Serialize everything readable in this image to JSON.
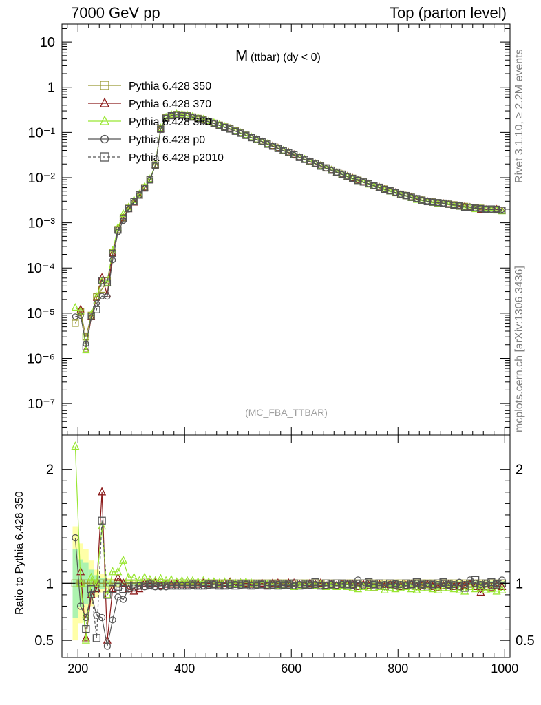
{
  "header": {
    "left": "7000 GeV pp",
    "right": "Top (parton level)"
  },
  "side": {
    "rivet": "Rivet 3.1.10, ≥ 2.2M events",
    "mcplots": "mcplots.cern.ch [arXiv:1306.3436]"
  },
  "chart_data": {
    "type": "line",
    "title_main": "M",
    "title_sub": "(ttbar) (dy < 0)",
    "watermark": "(MC_FBA_TTBAR)",
    "xlabel": "",
    "ylabel": "",
    "ratio_ylabel": "Ratio to Pythia 6.428 350",
    "xlim": [
      170,
      1010
    ],
    "ylim_log": [
      2e-08,
      25
    ],
    "ratio_ylim": [
      0.35,
      2.3
    ],
    "log_y": true,
    "legend_position": "top-left",
    "x_ticks": [
      "200",
      "400",
      "600",
      "800",
      "1000"
    ],
    "y_ticks": [
      "10",
      "1",
      "10⁻¹",
      "10⁻²",
      "10⁻³",
      "10⁻⁴",
      "10⁻⁵",
      "10⁻⁶",
      "10⁻⁷"
    ],
    "ratio_ticks": [
      "2",
      "1",
      "0.5"
    ],
    "reference_x": [
      185,
      195,
      205,
      215,
      225,
      235,
      245,
      255,
      265,
      275,
      285,
      295,
      305,
      315,
      325,
      335,
      345,
      355,
      365,
      375,
      385,
      395,
      405,
      415,
      425,
      435,
      445,
      455,
      465,
      475,
      485,
      495,
      505,
      515,
      525,
      535,
      545,
      555,
      565,
      575,
      585,
      595,
      605,
      615,
      625,
      635,
      645,
      655,
      665,
      675,
      685,
      695,
      705,
      715,
      725,
      735,
      745,
      755,
      765,
      775,
      785,
      795,
      805,
      815,
      825,
      835,
      845,
      855,
      865,
      875,
      885,
      895,
      905,
      915,
      925,
      935,
      945,
      955,
      965,
      975,
      985,
      995
    ],
    "reference_y": [
      3e-06,
      6e-06,
      1.1e-05,
      3e-06,
      9e-06,
      2.3e-05,
      3.4e-05,
      5.2e-05,
      0.00022,
      0.00071,
      0.0013,
      0.0021,
      0.003,
      0.0042,
      0.006,
      0.009,
      0.019,
      0.12,
      0.21,
      0.24,
      0.25,
      0.245,
      0.235,
      0.22,
      0.205,
      0.19,
      0.175,
      0.16,
      0.145,
      0.132,
      0.12,
      0.108,
      0.097,
      0.087,
      0.078,
      0.07,
      0.063,
      0.056,
      0.05,
      0.045,
      0.04,
      0.036,
      0.032,
      0.0285,
      0.0255,
      0.0228,
      0.0204,
      0.0183,
      0.0164,
      0.0147,
      0.0132,
      0.0119,
      0.0107,
      0.0097,
      0.0088,
      0.008,
      0.0073,
      0.0067,
      0.0061,
      0.0056,
      0.0051,
      0.0047,
      0.0043,
      0.004,
      0.0037,
      0.0034,
      0.0032,
      0.003,
      0.0029,
      0.0028,
      0.0027,
      0.0026,
      0.0025,
      0.0024,
      0.0023,
      0.0022,
      0.0021,
      0.0021,
      0.002,
      0.002,
      0.002,
      0.0019
    ],
    "series": [
      {
        "name": "Pythia 6.428 350",
        "color": "#999933",
        "marker": "square",
        "dashed": false,
        "ratio": [
          null,
          1,
          1,
          1,
          1,
          1,
          1,
          1,
          1,
          1,
          1,
          1,
          1,
          1,
          1,
          1,
          1,
          1,
          1,
          1,
          1,
          1,
          1,
          1,
          1,
          1,
          1,
          1,
          1,
          1,
          1,
          1,
          1,
          1,
          1,
          1,
          1,
          1,
          1,
          1,
          1,
          1,
          1,
          1,
          1,
          1,
          1,
          1,
          1,
          1,
          1,
          1,
          1,
          1,
          1,
          1,
          1,
          1,
          1,
          1,
          1,
          1,
          1,
          1,
          1,
          1,
          1,
          1,
          1,
          1,
          1,
          1,
          1,
          1,
          1,
          1,
          1,
          1,
          1,
          1,
          1,
          1
        ]
      },
      {
        "name": "Pythia 6.428 370",
        "color": "#8b1a1a",
        "marker": "triangle",
        "dashed": false,
        "ratio": [
          null,
          null,
          1.1,
          0.52,
          0.9,
          0.95,
          1.8,
          0.5,
          0.95,
          1.05,
          1.0,
          0.95,
          0.93,
          0.95,
          1.0,
          1.0,
          1.0,
          0.98,
          0.99,
          0.99,
          0.99,
          0.99,
          0.99,
          0.99,
          0.99,
          1.0,
          1.0,
          0.99,
          0.99,
          1.0,
          1.01,
          0.99,
          1.0,
          1.0,
          0.99,
          0.99,
          1.0,
          0.98,
          1.0,
          1.0,
          0.99,
          1.0,
          1.0,
          0.99,
          0.98,
          1.0,
          0.99,
          1.0,
          0.98,
          0.99,
          0.98,
          0.99,
          0.99,
          0.99,
          0.97,
          0.99,
          0.98,
          0.96,
          0.99,
          0.97,
          0.99,
          0.98,
          0.97,
          0.98,
          0.99,
          0.97,
          0.98,
          0.99,
          0.97,
          0.96,
          0.98,
          0.99,
          0.97,
          0.97,
          0.98,
          0.99,
          0.97,
          0.92,
          0.97,
          0.96,
          0.98,
          0.97
        ]
      },
      {
        "name": "Pythia 6.428 380",
        "color": "#99e633",
        "marker": "triangle",
        "dashed": false,
        "ratio": [
          null,
          2.2,
          1.0,
          0.5,
          1.05,
          1.0,
          1.5,
          0.9,
          1.1,
          1.1,
          1.2,
          1.05,
          1.05,
          1.02,
          1.05,
          1.03,
          1.02,
          1.04,
          1.02,
          1.03,
          1.01,
          1.02,
          1.02,
          1.02,
          1.01,
          1.02,
          1.01,
          1.01,
          1.0,
          1.01,
          1.0,
          1.0,
          1.0,
          1.01,
          1.0,
          0.99,
          0.99,
          0.99,
          0.98,
          0.98,
          0.99,
          0.98,
          0.97,
          0.98,
          0.99,
          0.98,
          0.98,
          0.99,
          0.97,
          0.98,
          0.97,
          0.98,
          0.97,
          0.96,
          0.95,
          0.97,
          0.96,
          0.96,
          0.97,
          0.94,
          0.96,
          0.95,
          0.96,
          0.97,
          0.95,
          0.94,
          0.96,
          0.96,
          0.95,
          0.94,
          0.96,
          0.96,
          0.95,
          0.94,
          0.93,
          0.97,
          0.95,
          0.96,
          0.94,
          0.95,
          0.93,
          0.94
        ]
      },
      {
        "name": "Pythia 6.428 p0",
        "color": "#555555",
        "marker": "circle",
        "dashed": false,
        "ratio": [
          null,
          1.4,
          0.8,
          0.7,
          0.9,
          0.72,
          0.7,
          0.45,
          0.68,
          0.88,
          0.86,
          0.95,
          0.96,
          0.98,
          0.97,
          0.98,
          0.97,
          0.97,
          0.97,
          0.98,
          0.98,
          0.98,
          0.98,
          0.98,
          0.98,
          0.98,
          0.98,
          0.99,
          0.98,
          0.98,
          0.98,
          0.99,
          0.98,
          0.99,
          0.98,
          0.98,
          0.99,
          0.98,
          0.98,
          0.99,
          0.98,
          0.98,
          0.98,
          0.99,
          0.98,
          0.98,
          0.99,
          0.98,
          0.98,
          0.99,
          0.98,
          0.99,
          0.99,
          0.98,
          1.03,
          0.98,
          1.0,
          0.99,
          0.98,
          0.99,
          0.99,
          1.0,
          0.99,
          0.98,
          0.99,
          1.0,
          0.99,
          1.0,
          0.99,
          0.99,
          1.0,
          0.98,
          0.99,
          1.01,
          0.99,
          1.03,
          1.0,
          0.99,
          1.0,
          0.98,
          1.0,
          1.03
        ]
      },
      {
        "name": "Pythia 6.428 p2010",
        "color": "#555555",
        "marker": "square",
        "dashed": true,
        "ratio": [
          null,
          null,
          null,
          0.6,
          0.95,
          0.52,
          1.55,
          0.9,
          0.95,
          0.97,
          0.95,
          0.98,
          0.98,
          0.98,
          0.98,
          0.99,
          0.98,
          0.98,
          0.98,
          0.98,
          0.98,
          0.98,
          0.98,
          0.99,
          0.98,
          0.98,
          0.99,
          0.99,
          0.98,
          0.98,
          0.99,
          0.98,
          0.99,
          0.99,
          0.98,
          0.99,
          0.99,
          0.98,
          0.99,
          0.98,
          0.99,
          0.99,
          1.0,
          0.98,
          0.99,
          0.99,
          1.01,
          0.98,
          1.0,
          0.99,
          1.0,
          1.0,
          0.99,
          0.99,
          0.98,
          1.0,
          1.01,
          0.99,
          1.0,
          0.98,
          1.0,
          0.99,
          0.98,
          1.0,
          0.99,
          1.01,
          0.99,
          0.98,
          0.99,
          1.0,
          1.01,
          0.99,
          0.98,
          0.98,
          0.96,
          1.0,
          1.03,
          0.98,
          1.0,
          1.01,
          0.99,
          1.0
        ]
      }
    ]
  }
}
